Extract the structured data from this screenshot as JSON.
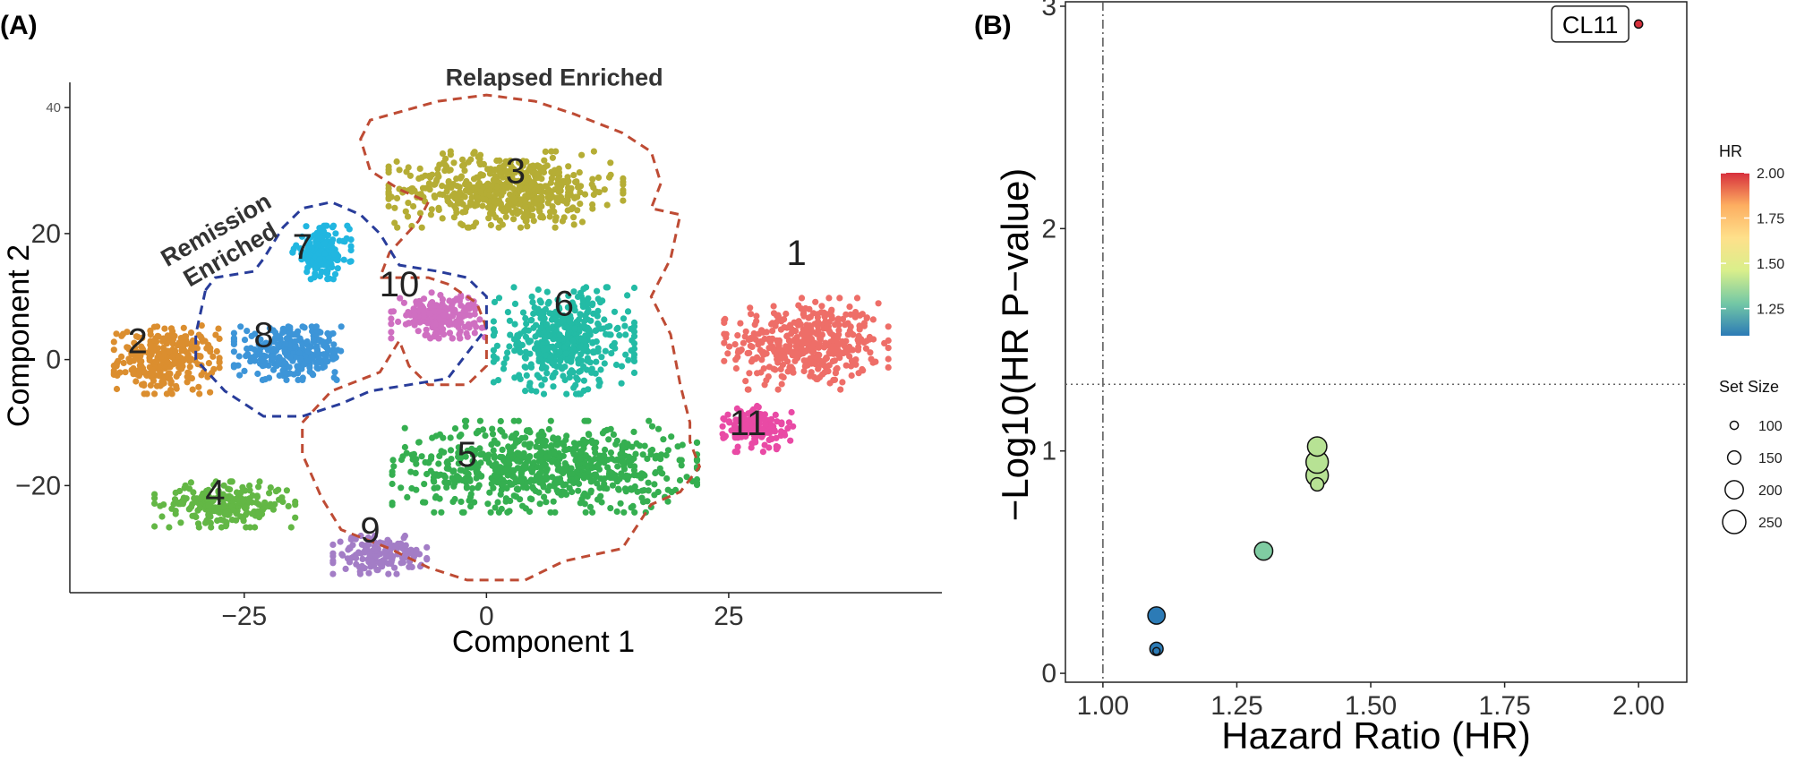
{
  "panel_a_label": "(A)",
  "panel_b_label": "(B)",
  "chart_data": [
    {
      "type": "scatter",
      "panel": "(A)",
      "xlabel": "Component 1",
      "ylabel": "Component 2",
      "xlim": [
        -43,
        47
      ],
      "ylim": [
        -37,
        44
      ],
      "xticks": [
        -25,
        0,
        25
      ],
      "xtick_labels": [
        "−25",
        "0",
        "25"
      ],
      "yticks": [
        -20,
        0,
        20,
        40
      ],
      "ytick_labels": [
        "−20",
        "0",
        "20",
        "40"
      ],
      "legend": "none",
      "clusters": [
        {
          "label": "1",
          "color": "#EE6E68",
          "center": [
            33,
            2.5
          ],
          "spread": [
            7,
            6
          ],
          "n": 420
        },
        {
          "label": "2",
          "color": "#DB8E2F",
          "center": [
            -33,
            0
          ],
          "spread": [
            4.5,
            4.5
          ],
          "n": 280
        },
        {
          "label": "3",
          "color": "#B5AD35",
          "center": [
            2,
            27
          ],
          "spread": [
            10,
            5
          ],
          "n": 560
        },
        {
          "label": "4",
          "color": "#63B745",
          "center": [
            -27,
            -23
          ],
          "spread": [
            6,
            3
          ],
          "n": 230
        },
        {
          "label": "5",
          "color": "#35AF50",
          "center": [
            6,
            -17
          ],
          "spread": [
            13,
            6
          ],
          "n": 720
        },
        {
          "label": "6",
          "color": "#23BBA5",
          "center": [
            8,
            3
          ],
          "spread": [
            6,
            7
          ],
          "n": 460
        },
        {
          "label": "7",
          "color": "#21B6E0",
          "center": [
            -17,
            17
          ],
          "spread": [
            2.5,
            3.5
          ],
          "n": 170
        },
        {
          "label": "8",
          "color": "#3D95D8",
          "center": [
            -20,
            1
          ],
          "spread": [
            5,
            3.5
          ],
          "n": 300
        },
        {
          "label": "9",
          "color": "#A37DC6",
          "center": [
            -11,
            -31
          ],
          "spread": [
            4,
            2.5
          ],
          "n": 150
        },
        {
          "label": "10",
          "color": "#CF6FC1",
          "center": [
            -5,
            7
          ],
          "spread": [
            4,
            3
          ],
          "n": 200
        },
        {
          "label": "11",
          "color": "#E94AA5",
          "center": [
            28,
            -11
          ],
          "spread": [
            3,
            3
          ],
          "n": 140
        }
      ],
      "label_positions": [
        {
          "label": "1",
          "x": 32,
          "y": 17
        },
        {
          "label": "2",
          "x": -36,
          "y": 3
        },
        {
          "label": "3",
          "x": 3,
          "y": 30
        },
        {
          "label": "4",
          "x": -28,
          "y": -21
        },
        {
          "label": "5",
          "x": -2,
          "y": -15
        },
        {
          "label": "6",
          "x": 8,
          "y": 9
        },
        {
          "label": "7",
          "x": -19,
          "y": 18
        },
        {
          "label": "8",
          "x": -23,
          "y": 4
        },
        {
          "label": "9",
          "x": -12,
          "y": -27
        },
        {
          "label": "10",
          "x": -9,
          "y": 12
        },
        {
          "label": "11",
          "x": 27,
          "y": -10
        }
      ],
      "regions": [
        {
          "name": "Relapsed Enriched",
          "color": "#BE4B34",
          "label_pos": [
            7,
            43.5
          ],
          "outline": [
            [
              -13,
              35
            ],
            [
              -12,
              38
            ],
            [
              -5,
              41
            ],
            [
              0,
              42
            ],
            [
              5,
              41
            ],
            [
              9,
              39
            ],
            [
              14,
              36
            ],
            [
              17,
              33
            ],
            [
              18,
              28
            ],
            [
              17,
              24
            ],
            [
              20,
              23
            ],
            [
              19,
              16
            ],
            [
              17,
              10
            ],
            [
              19,
              4
            ],
            [
              20,
              -4
            ],
            [
              21,
              -10
            ],
            [
              21,
              -13
            ],
            [
              22,
              -17
            ],
            [
              20,
              -21
            ],
            [
              17,
              -23
            ],
            [
              14,
              -30
            ],
            [
              8,
              -32
            ],
            [
              4,
              -35
            ],
            [
              -2,
              -35
            ],
            [
              -6,
              -33
            ],
            [
              -10,
              -30
            ],
            [
              -15,
              -27
            ],
            [
              -17,
              -22
            ],
            [
              -19,
              -15
            ],
            [
              -19,
              -10
            ],
            [
              -16,
              -5
            ],
            [
              -11,
              -2
            ],
            [
              -9,
              3
            ],
            [
              -8,
              -1
            ],
            [
              -6,
              -4
            ],
            [
              -2,
              -4
            ],
            [
              0,
              -1
            ],
            [
              0,
              5
            ],
            [
              -1,
              9
            ],
            [
              -4,
              12
            ],
            [
              -6,
              13
            ],
            [
              -11,
              13
            ],
            [
              -10,
              17
            ],
            [
              -7,
              22
            ],
            [
              -6,
              25
            ],
            [
              -9,
              27
            ],
            [
              -12,
              30
            ],
            [
              -13,
              35
            ]
          ]
        },
        {
          "name": "Remission Enriched",
          "label_lines": [
            "Remission",
            "Enriched"
          ],
          "color": "#283C9A",
          "label_pos": [
            -27.5,
            19.5
          ],
          "outline": [
            [
              -29,
              11
            ],
            [
              -28,
              13
            ],
            [
              -24,
              14
            ],
            [
              -23,
              16
            ],
            [
              -21,
              21
            ],
            [
              -19,
              24
            ],
            [
              -16,
              25
            ],
            [
              -13,
              23
            ],
            [
              -11,
              20
            ],
            [
              -9,
              15
            ],
            [
              -5,
              14
            ],
            [
              -2,
              13
            ],
            [
              0,
              10
            ],
            [
              0,
              5
            ],
            [
              -2,
              1
            ],
            [
              -4,
              -3
            ],
            [
              -8,
              -4
            ],
            [
              -12,
              -5
            ],
            [
              -15,
              -7
            ],
            [
              -19,
              -9
            ],
            [
              -23,
              -9
            ],
            [
              -27,
              -5
            ],
            [
              -30,
              0
            ],
            [
              -30,
              4
            ],
            [
              -29,
              11
            ]
          ]
        }
      ]
    },
    {
      "type": "scatter",
      "panel": "(B)",
      "xlabel": "Hazard Ratio (HR)",
      "ylabel": "−Log10(HR P−value)",
      "xlim": [
        0.93,
        2.09
      ],
      "ylim": [
        -0.04,
        3.02
      ],
      "xticks": [
        1.0,
        1.25,
        1.5,
        1.75,
        2.0
      ],
      "xtick_labels": [
        "1.00",
        "1.25",
        "1.50",
        "1.75",
        "2.00"
      ],
      "yticks": [
        0,
        1,
        2,
        3
      ],
      "ytick_labels": [
        "0",
        "1",
        "2",
        "3"
      ],
      "vline_x": 1.0,
      "hline_y": 1.3,
      "annotation": {
        "text": "CL11",
        "x": 2.0,
        "y": 2.92
      },
      "points": [
        {
          "hr": 1.1,
          "y": 0.1,
          "size": 90
        },
        {
          "hr": 1.1,
          "y": 0.11,
          "size": 150
        },
        {
          "hr": 1.1,
          "y": 0.26,
          "size": 190
        },
        {
          "hr": 1.3,
          "y": 0.55,
          "size": 200
        },
        {
          "hr": 1.4,
          "y": 0.85,
          "size": 150
        },
        {
          "hr": 1.4,
          "y": 0.89,
          "size": 240
        },
        {
          "hr": 1.4,
          "y": 0.95,
          "size": 240
        },
        {
          "hr": 1.4,
          "y": 1.02,
          "size": 210
        },
        {
          "hr": 2.0,
          "y": 2.92,
          "size": 100
        }
      ],
      "color_legend": {
        "title": "HR",
        "min": 1.1,
        "max": 2.0,
        "ticks": [
          1.25,
          1.5,
          1.75,
          2.0
        ],
        "tick_labels": [
          "1.25",
          "1.50",
          "1.75",
          "2.00"
        ],
        "colors": [
          "#2C7BB6",
          "#74C8A5",
          "#D9EF8B",
          "#FEE08B",
          "#FDAE61",
          "#D7303C"
        ]
      },
      "size_legend": {
        "title": "Set Size",
        "values": [
          100,
          150,
          200,
          250
        ],
        "labels": [
          "100",
          "150",
          "200",
          "250"
        ]
      }
    }
  ]
}
